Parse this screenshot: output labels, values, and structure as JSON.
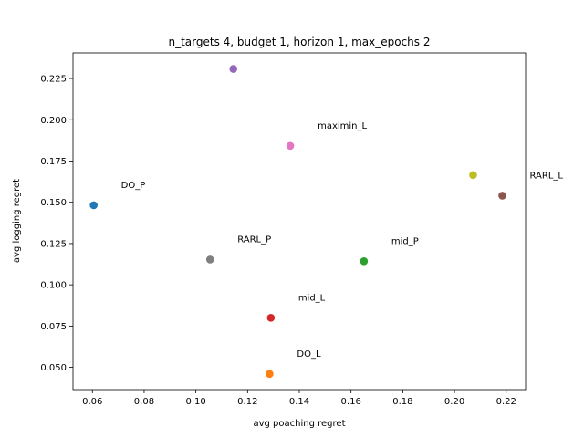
{
  "chart_data": {
    "type": "scatter",
    "title": "n_targets 4, budget 1, horizon 1, max_epochs 2",
    "xlabel": "avg poaching regret",
    "ylabel": "avg logging regret",
    "xlim": [
      0.0525,
      0.2275
    ],
    "ylim": [
      0.0365,
      0.2405
    ],
    "x_ticks": [
      0.06,
      0.08,
      0.1,
      0.12,
      0.14,
      0.16,
      0.18,
      0.2,
      0.22
    ],
    "x_tick_labels": [
      "0.06",
      "0.08",
      "0.10",
      "0.12",
      "0.14",
      "0.16",
      "0.18",
      "0.20",
      "0.22"
    ],
    "y_ticks": [
      0.05,
      0.075,
      0.1,
      0.125,
      0.15,
      0.175,
      0.2,
      0.225
    ],
    "y_tick_labels": [
      "0.050",
      "0.075",
      "0.100",
      "0.125",
      "0.150",
      "0.175",
      "0.200",
      "0.225"
    ],
    "grid": false,
    "points": [
      {
        "label": "DO_P",
        "x": 0.0605,
        "y": 0.1482,
        "color": "#1f77b4",
        "show_label": true
      },
      {
        "label": "DO_L",
        "x": 0.1285,
        "y": 0.046,
        "color": "#ff7f0e",
        "show_label": true
      },
      {
        "label": "mid_P",
        "x": 0.165,
        "y": 0.1143,
        "color": "#2ca02c",
        "show_label": true
      },
      {
        "label": "mid_L",
        "x": 0.129,
        "y": 0.08,
        "color": "#d62728",
        "show_label": true
      },
      {
        "label": "",
        "x": 0.1145,
        "y": 0.2308,
        "color": "#9467bd",
        "show_label": false
      },
      {
        "label": "RARL_L",
        "x": 0.2185,
        "y": 0.154,
        "color": "#8c564b",
        "show_label": true
      },
      {
        "label": "maximin_L",
        "x": 0.1365,
        "y": 0.1842,
        "color": "#e377c2",
        "show_label": true
      },
      {
        "label": "RARL_P",
        "x": 0.1055,
        "y": 0.1153,
        "color": "#7f7f7f",
        "show_label": true
      },
      {
        "label": "",
        "x": 0.2072,
        "y": 0.1665,
        "color": "#bcbd22",
        "show_label": false
      }
    ]
  }
}
